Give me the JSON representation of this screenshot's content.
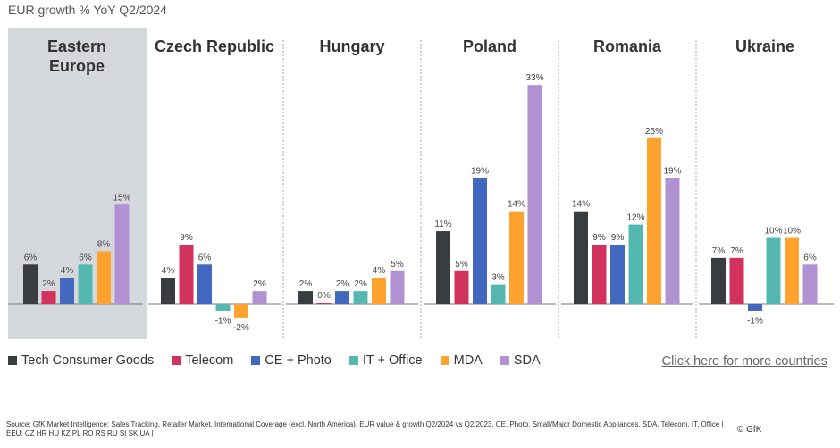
{
  "title": "EUR growth % YoY Q2/2024",
  "chart_data": {
    "type": "bar",
    "ylabel": "",
    "series": [
      {
        "name": "Tech Consumer Goods",
        "color": "#3a3d40"
      },
      {
        "name": "Telecom",
        "color": "#d2325e"
      },
      {
        "name": "CE + Photo",
        "color": "#4268c0"
      },
      {
        "name": "IT + Office",
        "color": "#55b8b0"
      },
      {
        "name": "MDA",
        "color": "#ffa22e"
      },
      {
        "name": "SDA",
        "color": "#b091d2"
      }
    ],
    "panels": [
      {
        "name": "Eastern Europe",
        "highlighted": true,
        "values": [
          6,
          2,
          4,
          6,
          8,
          15
        ]
      },
      {
        "name": "Czech Republic",
        "values": [
          4,
          9,
          6,
          -1,
          -2,
          2
        ]
      },
      {
        "name": "Hungary",
        "values": [
          2,
          0,
          2,
          2,
          4,
          5
        ]
      },
      {
        "name": "Poland",
        "values": [
          11,
          5,
          19,
          3,
          14,
          33
        ]
      },
      {
        "name": "Romania",
        "values": [
          14,
          9,
          9,
          12,
          25,
          19
        ]
      },
      {
        "name": "Ukraine",
        "values": [
          7,
          7,
          -1,
          10,
          10,
          6
        ]
      }
    ],
    "value_suffix": "%",
    "legend": "bottom-left"
  },
  "link_label": "Click here for more countries",
  "source_line1": "Source: GfK Market Intelligence: Sales Tracking, Retailer Market, International Coverage (excl. North America), EUR value & growth Q2/2024 vs Q2/2023, CE, Photo, Small/Major Domestic Appliances, SDA, Telecom, IT, Office |",
  "source_line2": "EEU: CZ HR HU KZ PL RO RS RU SI SK UA |",
  "copyright": "© GfK"
}
